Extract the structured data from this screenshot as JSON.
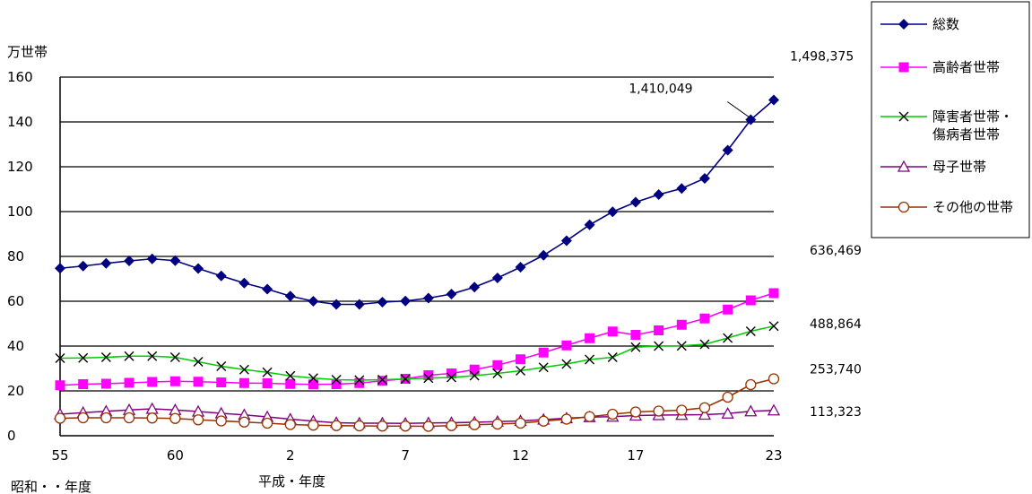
{
  "chart_data": {
    "type": "line",
    "ylabel": "万世帯",
    "ylim": [
      0,
      160
    ],
    "yticks": [
      "0",
      "20",
      "40",
      "60",
      "80",
      "100",
      "120",
      "140",
      "160"
    ],
    "x_tick_labels": [
      "55",
      "60",
      "2",
      "7",
      "12",
      "17",
      "23"
    ],
    "x_era_labels": [
      "昭和・・年度",
      "平成・年度"
    ],
    "grid": true,
    "legend_position": "top-right",
    "categories": [
      "55",
      "56",
      "57",
      "58",
      "59",
      "60",
      "61",
      "62",
      "63",
      "1",
      "2",
      "3",
      "4",
      "5",
      "6",
      "7",
      "8",
      "9",
      "10",
      "11",
      "12",
      "13",
      "14",
      "15",
      "16",
      "17",
      "18",
      "19",
      "20",
      "21",
      "22",
      "23"
    ],
    "series": [
      {
        "name": "総数",
        "color": "#000080",
        "marker": "diamond",
        "values": [
          74.7,
          75.7,
          76.9,
          78.0,
          78.9,
          78.1,
          74.6,
          71.3,
          68.1,
          65.4,
          62.3,
          60.0,
          58.6,
          58.6,
          59.6,
          60.1,
          61.4,
          63.2,
          66.3,
          70.4,
          75.2,
          80.5,
          87.0,
          94.1,
          99.9,
          104.2,
          107.6,
          110.3,
          114.8,
          127.4,
          141.0,
          149.8
        ]
      },
      {
        "name": "高齢者世帯",
        "color": "#FF00FF",
        "marker": "square",
        "values": [
          22.5,
          23.0,
          23.2,
          23.6,
          24.0,
          24.3,
          24.1,
          23.8,
          23.5,
          23.4,
          23.1,
          22.9,
          23.0,
          23.5,
          24.5,
          25.4,
          27.0,
          27.8,
          29.5,
          31.5,
          34.1,
          37.1,
          40.3,
          43.5,
          46.5,
          45.0,
          47.0,
          49.5,
          52.3,
          56.3,
          60.4,
          63.6
        ]
      },
      {
        "name": "障害者世帯・\n傷病者世帯",
        "color": "#00CC00",
        "marker": "x",
        "values": [
          34.6,
          34.7,
          35.0,
          35.5,
          35.5,
          35.0,
          33.0,
          31.0,
          29.5,
          28.3,
          26.7,
          25.7,
          25.0,
          24.8,
          25.0,
          25.3,
          25.7,
          26.0,
          26.8,
          27.8,
          29.0,
          30.5,
          32.0,
          34.0,
          35.0,
          39.5,
          40.0,
          40.1,
          40.8,
          43.6,
          46.6,
          48.9
        ]
      },
      {
        "name": "母子世帯",
        "color": "#800080",
        "marker": "triangle",
        "values": [
          9.6,
          10.3,
          10.9,
          11.5,
          12.0,
          11.5,
          10.8,
          10.0,
          9.3,
          8.4,
          7.4,
          6.5,
          5.8,
          5.6,
          5.6,
          5.5,
          5.7,
          5.8,
          6.0,
          6.3,
          6.6,
          7.2,
          7.8,
          8.3,
          8.5,
          9.0,
          9.2,
          9.3,
          9.4,
          9.9,
          10.9,
          11.3
        ]
      },
      {
        "name": "その他の世帯",
        "color": "#993300",
        "marker": "circle",
        "values": [
          7.8,
          8.0,
          8.0,
          8.0,
          7.9,
          7.7,
          7.1,
          6.6,
          6.1,
          5.6,
          5.0,
          4.7,
          4.5,
          4.4,
          4.3,
          4.3,
          4.2,
          4.5,
          4.9,
          5.2,
          5.6,
          6.5,
          7.4,
          8.5,
          9.6,
          10.6,
          11.0,
          11.4,
          12.5,
          17.2,
          22.8,
          25.4
        ]
      }
    ],
    "annotations": [
      {
        "text": "1,410,049",
        "category": "22",
        "series": "総数"
      },
      {
        "text": "1,498,375",
        "category": "23",
        "series": "総数"
      },
      {
        "text": "636,469",
        "category": "23",
        "series": "高齢者世帯"
      },
      {
        "text": "488,864",
        "category": "23",
        "series": "障害者世帯・\n傷病者世帯"
      },
      {
        "text": "253,740",
        "category": "23",
        "series": "その他の世帯"
      },
      {
        "text": "113,323",
        "category": "23",
        "series": "母子世帯"
      }
    ]
  }
}
